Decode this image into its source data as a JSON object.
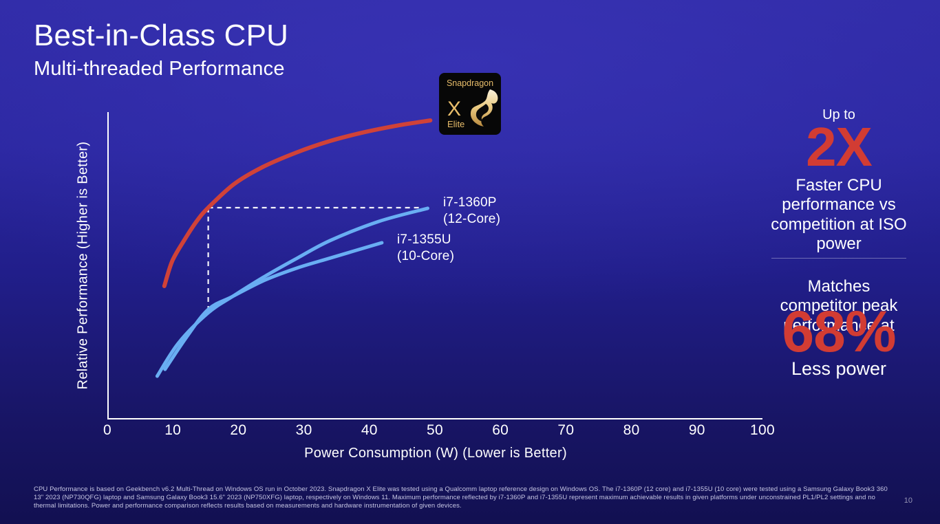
{
  "slide": {
    "title": "Best-in-Class CPU",
    "subtitle": "Multi-threaded Performance",
    "page_number": "10",
    "footnote": "CPU Performance is based on Geekbench v6.2 Multi-Thread on Windows OS run in October 2023. Snapdragon X Elite was tested using a Qualcomm laptop reference design on Windows OS. The i7-1360P (12 core) and i7-1355U (10 core) were tested using a Samsung Galaxy Book3 360 13\" 2023 (NP730QFG) laptop and Samsung Galaxy Book3 15.6\" 2023 (NP750XFG) laptop, respectively on Windows 11. Maximum performance reflected by i7-1360P and i7-1355U represent maximum achievable results in given platforms under unconstrained PL1/PL2 settings and no thermal limitations. Power and performance comparison reflects results based on measurements and hardware instrumentation of given devices."
  },
  "logo": {
    "brand": "Snapdragon",
    "model": "X",
    "tier": "Elite"
  },
  "right_panel": {
    "stat1": {
      "prefix": "Up to",
      "value": "2X",
      "description": "Faster CPU performance vs competition at ISO power"
    },
    "stat2": {
      "lead": "Matches competitor peak performance at",
      "value": "68%",
      "suffix": "Less power"
    }
  },
  "colors": {
    "accent_red": "#d23c33",
    "curve_red": "#d04238",
    "curve_blue": "#69aef3",
    "axis_white": "#ffffff",
    "logo_gold": "#e8bd6a"
  },
  "chart_data": {
    "type": "line",
    "title": "",
    "xlabel": "Power Consumption (W)  (Lower is Better)",
    "ylabel": "Relative Performance  (Higher is Better)",
    "xlim": [
      0,
      100
    ],
    "ylim": [
      0,
      100
    ],
    "x_ticks": [
      0,
      10,
      20,
      30,
      40,
      50,
      60,
      70,
      80,
      90,
      100
    ],
    "y_ticks_shown": false,
    "grid": false,
    "legend_position": "inline-annotations",
    "y_units": "relative performance, % of plot scale (axis unlabeled)",
    "series": [
      {
        "name": "Snapdragon X Elite",
        "color": "#d04238",
        "x": [
          8.7,
          9.9,
          11.7,
          13.6,
          15.4,
          19.3,
          23.5,
          28.8,
          34.0,
          39.3,
          44.5,
          49.3
        ],
        "y": [
          43.4,
          51.5,
          58.2,
          64.4,
          68.9,
          76.5,
          81.9,
          86.8,
          90.6,
          93.5,
          95.7,
          97.3
        ]
      },
      {
        "name": "i7-1360P (12-Core)",
        "color": "#69aef3",
        "x": [
          7.6,
          10.9,
          15.4,
          19.1,
          24.0,
          29.0,
          34.0,
          41.4,
          48.9
        ],
        "y": [
          14.1,
          25.0,
          34.7,
          40.0,
          46.5,
          52.5,
          58.2,
          64.4,
          68.7
        ]
      },
      {
        "name": "i7-1355U (10-Core)",
        "color": "#69aef3",
        "x": [
          8.8,
          12.0,
          15.4,
          19.1,
          24.0,
          29.0,
          34.0,
          41.9
        ],
        "y": [
          16.3,
          26.5,
          35.8,
          40.0,
          45.3,
          49.3,
          52.5,
          57.5
        ]
      }
    ],
    "curve_labels": [
      {
        "line1": "i7-1360P",
        "line2": "(12-Core)"
      },
      {
        "line1": "i7-1355U",
        "line2": "(10-Core)"
      }
    ],
    "annotations": {
      "iso_power": {
        "meaning": "Snapdragon X Elite matches i7-1360P peak performance at ~15.4W vs ~49W (68% less power)",
        "x": 15.4,
        "y": 68.9,
        "x_to": 47.9,
        "y_bottom": 35.5
      }
    }
  }
}
